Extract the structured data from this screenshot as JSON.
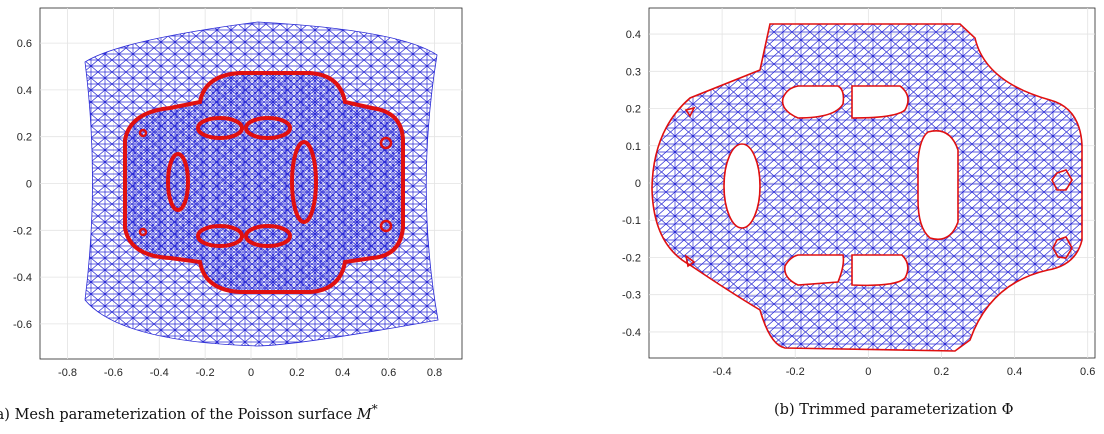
{
  "figure_a": {
    "caption_prefix": "(a) Mesh parameterization of the Poisson surface",
    "caption_math": "M",
    "caption_sup": "*",
    "chart_data": {
      "type": "mesh",
      "xlim": [
        -0.92,
        0.92
      ],
      "ylim": [
        -0.75,
        0.75
      ],
      "xticks": [
        "-0.8",
        "-0.6",
        "-0.4",
        "-0.2",
        "0",
        "0.2",
        "0.4",
        "0.6",
        "0.8"
      ],
      "yticks": [
        "0.6",
        "0.4",
        "0.2",
        "0",
        "-0.2",
        "-0.4",
        "-0.6"
      ],
      "grid": true,
      "mesh_color": "#2a2ad6",
      "boundary_color": "#e01010"
    }
  },
  "figure_b": {
    "caption_prefix": "(b) Trimmed parameterization",
    "caption_math": "Φ",
    "chart_data": {
      "type": "mesh",
      "xlim": [
        -0.6,
        0.62
      ],
      "ylim": [
        -0.47,
        0.47
      ],
      "xticks": [
        "-0.4",
        "-0.2",
        "0",
        "0.2",
        "0.4",
        "0.6"
      ],
      "yticks": [
        "0.4",
        "0.3",
        "0.2",
        "0.1",
        "0",
        "-0.1",
        "-0.2",
        "-0.3",
        "-0.4"
      ],
      "grid": true,
      "mesh_color": "#2a2ad6",
      "boundary_color": "#e01010"
    }
  }
}
